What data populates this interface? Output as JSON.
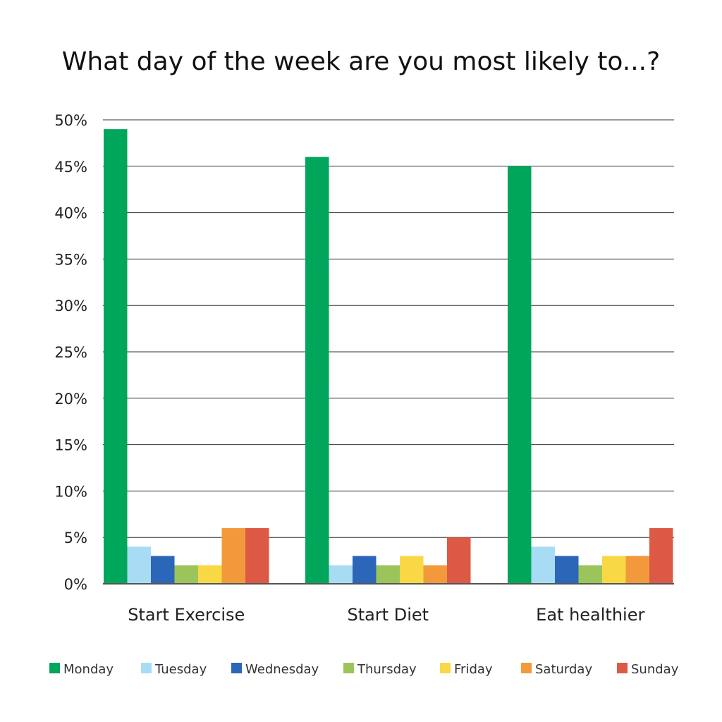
{
  "chart_data": {
    "type": "bar",
    "title": "What day of the week are you most likely to...?",
    "xlabel": "",
    "ylabel": "",
    "ylim": [
      0,
      50
    ],
    "yticks": [
      0,
      5,
      10,
      15,
      20,
      25,
      30,
      35,
      40,
      45,
      50
    ],
    "ytick_labels": [
      "0%",
      "5%",
      "10%",
      "15%",
      "20%",
      "25%",
      "30%",
      "35%",
      "40%",
      "45%",
      "50%"
    ],
    "categories": [
      "Start Exercise",
      "Start Diet",
      "Eat healthier"
    ],
    "series": [
      {
        "name": "Monday",
        "color": "#00a65a",
        "values": [
          49,
          46,
          45
        ]
      },
      {
        "name": "Tuesday",
        "color": "#a8dcf5",
        "values": [
          4,
          2,
          4
        ]
      },
      {
        "name": "Wednesday",
        "color": "#2c66b8",
        "values": [
          3,
          3,
          3
        ]
      },
      {
        "name": "Thursday",
        "color": "#9bc55a",
        "values": [
          2,
          2,
          2
        ]
      },
      {
        "name": "Friday",
        "color": "#f9d846",
        "values": [
          2,
          3,
          3
        ]
      },
      {
        "name": "Saturday",
        "color": "#f29a3b",
        "values": [
          6,
          2,
          3
        ]
      },
      {
        "name": "Sunday",
        "color": "#dc5a45",
        "values": [
          6,
          5,
          6
        ]
      }
    ],
    "grid": true,
    "legend_position": "bottom"
  }
}
